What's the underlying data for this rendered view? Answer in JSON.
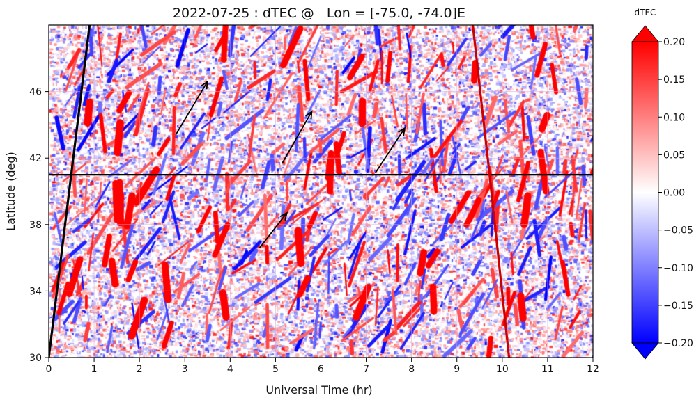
{
  "chart_data": {
    "type": "heatmap",
    "title": "2022-07-25 : dTEC @   Lon = [-75.0, -74.0]E",
    "xlabel": "Universal Time (hr)",
    "ylabel": "Latitude (deg)",
    "xlim": [
      0,
      12
    ],
    "ylim": [
      30,
      50
    ],
    "x_ticks": [
      0,
      1,
      2,
      3,
      4,
      5,
      6,
      7,
      8,
      9,
      10,
      11,
      12
    ],
    "x_tick_labels": [
      "0",
      "1",
      "2",
      "3",
      "4",
      "5",
      "6",
      "7",
      "8",
      "9",
      "10",
      "11",
      "12"
    ],
    "y_ticks": [
      30,
      34,
      38,
      42,
      46
    ],
    "y_tick_labels": [
      "30",
      "34",
      "38",
      "42",
      "46"
    ],
    "colorbar": {
      "label": "dTEC",
      "min": -0.2,
      "max": 0.2,
      "colormap": "bwr",
      "extend": "both",
      "ticks": [
        -0.2,
        -0.15,
        -0.1,
        -0.05,
        0.0,
        0.05,
        0.1,
        0.15,
        0.2
      ],
      "tick_labels": [
        "−0.20",
        "−0.15",
        "−0.10",
        "−0.05",
        "0.00",
        "0.05",
        "0.10",
        "0.15",
        "0.20"
      ],
      "color_low": "#0000ff",
      "color_mid": "#ffffff",
      "color_high": "#ff0000"
    },
    "reference_line": {
      "latitude": 41.0,
      "color": "#000000"
    },
    "terminators": [
      {
        "color": "#000000",
        "points": [
          [
            0.0,
            30.0
          ],
          [
            0.45,
            40.0
          ],
          [
            0.9,
            50.0
          ]
        ]
      },
      {
        "color": "#cc0000",
        "points": [
          [
            9.35,
            50.0
          ],
          [
            9.72,
            41.0
          ],
          [
            10.15,
            30.0
          ]
        ]
      }
    ],
    "arrows": [
      {
        "from": [
          2.8,
          43.4
        ],
        "to": [
          3.5,
          46.6
        ]
      },
      {
        "from": [
          5.15,
          41.7
        ],
        "to": [
          5.8,
          44.8
        ]
      },
      {
        "from": [
          7.2,
          41.1
        ],
        "to": [
          7.85,
          43.8
        ]
      },
      {
        "from": [
          4.65,
          36.6
        ],
        "to": [
          5.25,
          38.7
        ]
      }
    ],
    "grid": true
  }
}
